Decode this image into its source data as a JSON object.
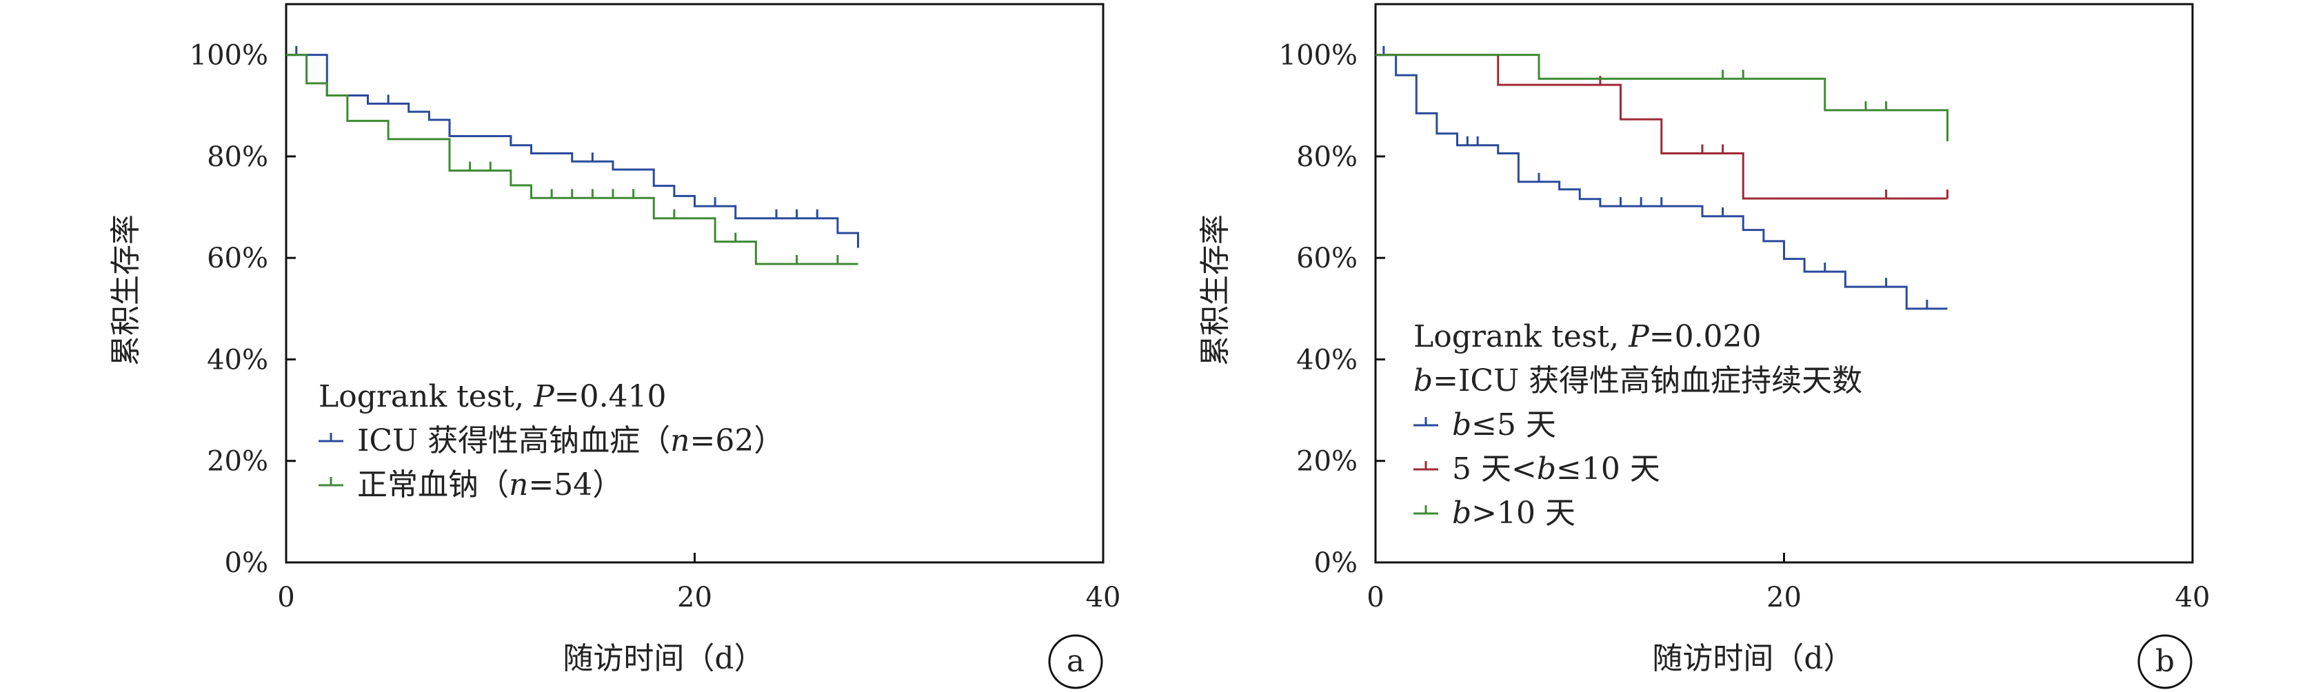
{
  "colors": {
    "blue": "#2a4b9b",
    "green": "#3f8a35",
    "red": "#9e2a35",
    "axis": "#111111",
    "text": "#222222"
  },
  "chart_data": [
    {
      "type": "line",
      "step": true,
      "panel_label": "a",
      "xlabel": "随访时间（d）",
      "ylabel": "累积生存率",
      "xlim": [
        0,
        40
      ],
      "ylim": [
        0,
        1.1
      ],
      "xticks": [
        0,
        20,
        40
      ],
      "xtick_labels": [
        "0",
        "20",
        "40"
      ],
      "yticks": [
        0,
        0.2,
        0.4,
        0.6,
        0.8,
        1.0
      ],
      "ytick_labels": [
        "0%",
        "20%",
        "40%",
        "60%",
        "80%",
        "100%"
      ],
      "legend_placement": "bottom-left",
      "legend_title": "Logrank test, P=0.410",
      "legend_title_prefix": "Logrank test, ",
      "legend_title_italic": "P",
      "legend_title_suffix": "=0.410",
      "series": [
        {
          "name": "ICU 获得性高钠血症（n=62）",
          "label_prefix": "ICU 获得性高钠血症（",
          "label_italic": "n",
          "label_suffix": "=62）",
          "color": "#2a4b9b",
          "steps": [
            [
              0,
              1.0
            ],
            [
              2,
              0.92
            ],
            [
              4,
              0.904
            ],
            [
              6,
              0.888
            ],
            [
              7,
              0.872
            ],
            [
              8,
              0.84
            ],
            [
              11,
              0.822
            ],
            [
              12,
              0.806
            ],
            [
              14,
              0.79
            ],
            [
              16,
              0.774
            ],
            [
              18,
              0.742
            ],
            [
              19,
              0.722
            ],
            [
              20,
              0.702
            ],
            [
              22,
              0.678
            ],
            [
              27,
              0.649
            ],
            [
              28,
              0.62
            ]
          ],
          "end_x": 28,
          "censored": [
            [
              0.5,
              1.0
            ],
            [
              5,
              0.904
            ],
            [
              11,
              0.822
            ],
            [
              15,
              0.79
            ],
            [
              21,
              0.702
            ],
            [
              24,
              0.678
            ],
            [
              25,
              0.678
            ],
            [
              26,
              0.678
            ]
          ]
        },
        {
          "name": "正常血钠（n=54）",
          "label_prefix": "正常血钠（",
          "label_italic": "n",
          "label_suffix": "=54）",
          "color": "#3f8a35",
          "steps": [
            [
              0,
              1.0
            ],
            [
              1,
              0.944
            ],
            [
              2,
              0.92
            ],
            [
              3,
              0.87
            ],
            [
              5,
              0.834
            ],
            [
              8,
              0.772
            ],
            [
              11,
              0.743
            ],
            [
              12,
              0.718
            ],
            [
              18,
              0.678
            ],
            [
              21,
              0.632
            ],
            [
              23,
              0.588
            ],
            [
              28,
              0.588
            ]
          ],
          "end_x": 28,
          "censored": [
            [
              9,
              0.772
            ],
            [
              10,
              0.772
            ],
            [
              13,
              0.718
            ],
            [
              14,
              0.718
            ],
            [
              15,
              0.718
            ],
            [
              16,
              0.718
            ],
            [
              17,
              0.718
            ],
            [
              19,
              0.678
            ],
            [
              22,
              0.632
            ],
            [
              25,
              0.588
            ],
            [
              27,
              0.588
            ]
          ]
        }
      ]
    },
    {
      "type": "line",
      "step": true,
      "panel_label": "b",
      "xlabel": "随访时间（d）",
      "ylabel": "累积生存率",
      "xlim": [
        0,
        40
      ],
      "ylim": [
        0,
        1.1
      ],
      "xticks": [
        0,
        20,
        40
      ],
      "xtick_labels": [
        "0",
        "20",
        "40"
      ],
      "yticks": [
        0,
        0.2,
        0.4,
        0.6,
        0.8,
        1.0
      ],
      "ytick_labels": [
        "0%",
        "20%",
        "40%",
        "60%",
        "80%",
        "100%"
      ],
      "legend_placement": "bottom-left",
      "legend_title": "Logrank test, P=0.020",
      "legend_title_prefix": "Logrank test, ",
      "legend_title_italic": "P",
      "legend_title_suffix": "=0.020",
      "legend_subtitle": "b=ICU 获得性高钠血症持续天数",
      "legend_subtitle_italic": "b",
      "legend_subtitle_suffix": "=ICU 获得性高钠血症持续天数",
      "series": [
        {
          "name": "b≤5 天",
          "label_prefix": "",
          "label_italic": "b",
          "label_suffix": "≤5 天",
          "color": "#2a4b9b",
          "steps": [
            [
              0,
              1.0
            ],
            [
              1,
              0.96
            ],
            [
              2,
              0.885
            ],
            [
              3,
              0.845
            ],
            [
              4,
              0.822
            ],
            [
              6,
              0.806
            ],
            [
              7,
              0.75
            ],
            [
              9,
              0.735
            ],
            [
              10,
              0.716
            ],
            [
              11,
              0.702
            ],
            [
              16,
              0.682
            ],
            [
              18,
              0.655
            ],
            [
              19,
              0.633
            ],
            [
              20,
              0.598
            ],
            [
              21,
              0.573
            ],
            [
              23,
              0.543
            ],
            [
              26,
              0.5
            ],
            [
              28,
              0.5
            ]
          ],
          "end_x": 28,
          "censored": [
            [
              0.4,
              1.0
            ],
            [
              4.5,
              0.822
            ],
            [
              5,
              0.822
            ],
            [
              8,
              0.75
            ],
            [
              12,
              0.702
            ],
            [
              13,
              0.702
            ],
            [
              14,
              0.702
            ],
            [
              17,
              0.682
            ],
            [
              22,
              0.573
            ],
            [
              25,
              0.543
            ],
            [
              27,
              0.5
            ]
          ]
        },
        {
          "name": "5 天<b≤10 天",
          "label_prefix": "5 天<",
          "label_italic": "b",
          "label_suffix": "≤10 天",
          "color": "#9e2a35",
          "steps": [
            [
              0,
              1.0
            ],
            [
              6,
              0.941
            ],
            [
              12,
              0.873
            ],
            [
              14,
              0.806
            ],
            [
              18,
              0.717
            ],
            [
              28,
              0.717
            ]
          ],
          "end_x": 28,
          "censored": [
            [
              11,
              0.941
            ],
            [
              16,
              0.806
            ],
            [
              17,
              0.806
            ],
            [
              25,
              0.717
            ],
            [
              28,
              0.717
            ]
          ]
        },
        {
          "name": "b>10 天",
          "label_prefix": "",
          "label_italic": "b",
          "label_suffix": ">10 天",
          "color": "#3f8a35",
          "steps": [
            [
              0,
              1.0
            ],
            [
              8,
              0.953
            ],
            [
              22,
              0.891
            ],
            [
              28,
              0.83
            ]
          ],
          "end_x": 28,
          "censored": [
            [
              17,
              0.953
            ],
            [
              18,
              0.953
            ],
            [
              24,
              0.891
            ],
            [
              25,
              0.891
            ]
          ]
        }
      ]
    }
  ]
}
